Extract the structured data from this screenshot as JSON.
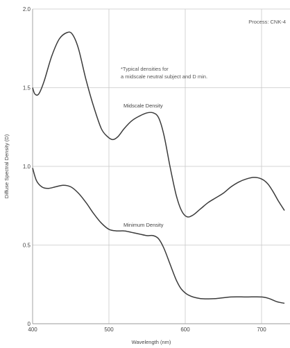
{
  "chart_data": {
    "type": "line",
    "xlabel": "Wavelength (nm)",
    "ylabel": "Diffuse Spectral Density (D)",
    "xlim": [
      400,
      730
    ],
    "ylim": [
      0,
      2.0
    ],
    "x_ticks": [
      400,
      500,
      600,
      700
    ],
    "y_ticks": [
      0,
      0.5,
      1.0,
      1.5,
      2.0
    ],
    "x_tick_labels": [
      "400",
      "500",
      "600",
      "700"
    ],
    "y_tick_labels": [
      "0",
      "0.5",
      "1.0",
      "1.5",
      "2.0"
    ],
    "grid": true,
    "annotations": {
      "process": "Process: CNK-4",
      "note_line1": "*Typical densities for",
      "note_line2": "a midscale neutral subject and D min."
    },
    "series": [
      {
        "name": "Midscale Density",
        "points": [
          [
            400,
            1.5
          ],
          [
            403,
            1.46
          ],
          [
            408,
            1.46
          ],
          [
            415,
            1.54
          ],
          [
            425,
            1.7
          ],
          [
            435,
            1.81
          ],
          [
            445,
            1.85
          ],
          [
            452,
            1.84
          ],
          [
            460,
            1.75
          ],
          [
            470,
            1.55
          ],
          [
            480,
            1.38
          ],
          [
            490,
            1.24
          ],
          [
            498,
            1.19
          ],
          [
            505,
            1.17
          ],
          [
            512,
            1.19
          ],
          [
            520,
            1.24
          ],
          [
            530,
            1.29
          ],
          [
            540,
            1.32
          ],
          [
            550,
            1.34
          ],
          [
            558,
            1.34
          ],
          [
            565,
            1.31
          ],
          [
            572,
            1.2
          ],
          [
            580,
            1.0
          ],
          [
            588,
            0.82
          ],
          [
            595,
            0.72
          ],
          [
            602,
            0.68
          ],
          [
            610,
            0.69
          ],
          [
            620,
            0.73
          ],
          [
            630,
            0.77
          ],
          [
            640,
            0.8
          ],
          [
            650,
            0.83
          ],
          [
            660,
            0.87
          ],
          [
            670,
            0.9
          ],
          [
            680,
            0.92
          ],
          [
            690,
            0.93
          ],
          [
            700,
            0.92
          ],
          [
            708,
            0.89
          ],
          [
            715,
            0.84
          ],
          [
            722,
            0.78
          ],
          [
            730,
            0.72
          ]
        ]
      },
      {
        "name": "Minimum Density",
        "points": [
          [
            400,
            0.99
          ],
          [
            405,
            0.91
          ],
          [
            412,
            0.87
          ],
          [
            420,
            0.86
          ],
          [
            430,
            0.87
          ],
          [
            440,
            0.88
          ],
          [
            450,
            0.87
          ],
          [
            460,
            0.83
          ],
          [
            470,
            0.77
          ],
          [
            480,
            0.7
          ],
          [
            490,
            0.64
          ],
          [
            500,
            0.6
          ],
          [
            510,
            0.59
          ],
          [
            520,
            0.59
          ],
          [
            530,
            0.58
          ],
          [
            540,
            0.57
          ],
          [
            550,
            0.56
          ],
          [
            558,
            0.56
          ],
          [
            565,
            0.54
          ],
          [
            572,
            0.48
          ],
          [
            580,
            0.38
          ],
          [
            588,
            0.28
          ],
          [
            595,
            0.22
          ],
          [
            605,
            0.18
          ],
          [
            620,
            0.16
          ],
          [
            640,
            0.16
          ],
          [
            660,
            0.17
          ],
          [
            680,
            0.17
          ],
          [
            700,
            0.17
          ],
          [
            710,
            0.16
          ],
          [
            720,
            0.14
          ],
          [
            730,
            0.13
          ]
        ]
      }
    ]
  }
}
